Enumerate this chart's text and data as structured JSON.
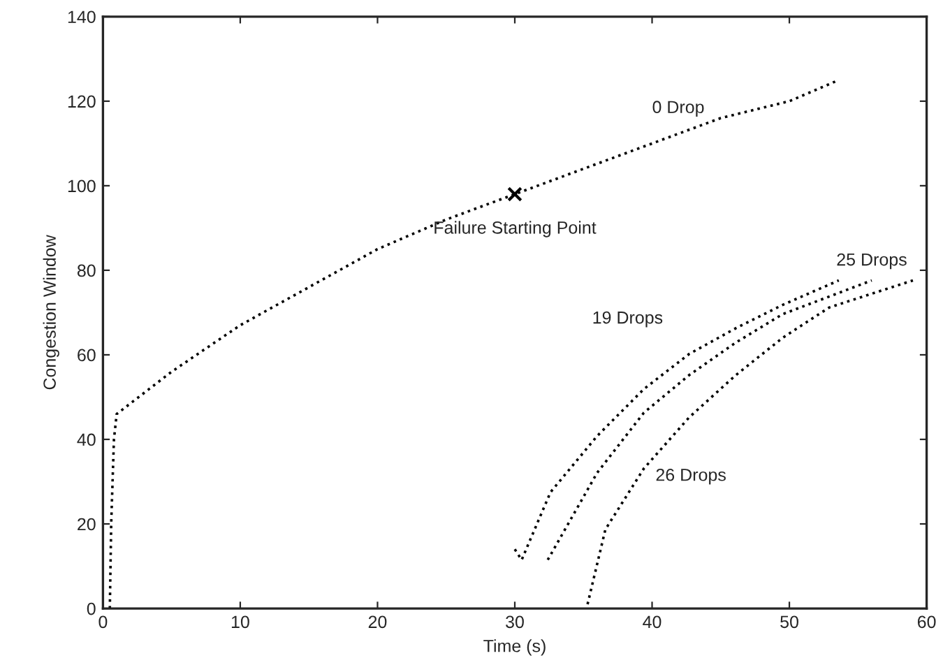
{
  "chart_data": {
    "type": "line",
    "xlabel": "Time (s)",
    "ylabel": "Congestion Window",
    "xlim": [
      0,
      60
    ],
    "ylim": [
      0,
      140
    ],
    "xticks": [
      0,
      10,
      20,
      30,
      40,
      50,
      60
    ],
    "yticks": [
      0,
      20,
      40,
      60,
      80,
      100,
      120,
      140
    ],
    "grid": false,
    "legend": false,
    "line_style": "dotted",
    "marker": "none",
    "series": [
      {
        "name": "0 Drop",
        "color": "#000000",
        "x": [
          0.5,
          0.6,
          0.8,
          1,
          5,
          10,
          15,
          20,
          25,
          30,
          35,
          40,
          45,
          50,
          53.6
        ],
        "values": [
          0,
          20,
          40,
          46,
          56,
          67,
          76,
          85,
          92,
          98,
          104,
          110,
          116,
          120,
          125
        ]
      },
      {
        "name": "19 Drops",
        "color": "#000000",
        "x": [
          30.0,
          30.5,
          32.6,
          36.0,
          39.4,
          42.7,
          46.1,
          49.5,
          53.6
        ],
        "values": [
          14,
          11.5,
          27.5,
          40.8,
          51.9,
          60.2,
          66.3,
          71.8,
          77.6
        ]
      },
      {
        "name": "25 Drops",
        "color": "#000000",
        "x": [
          32.4,
          36.0,
          39.4,
          42.7,
          46.1,
          49.5,
          56.0
        ],
        "values": [
          11.5,
          32.1,
          46.3,
          55.2,
          62.9,
          69.6,
          77.6
        ]
      },
      {
        "name": "26 Drops",
        "color": "#000000",
        "x": [
          35.3,
          36.6,
          39.4,
          42.7,
          46.1,
          49.5,
          52.9,
          59.0
        ],
        "values": [
          1,
          18.7,
          33.1,
          45.2,
          55.2,
          64.0,
          71.2,
          77.6
        ]
      },
      {
        "type": "scatter",
        "color": "#000000",
        "marker": "cross",
        "x": [
          30
        ],
        "values": [
          98
        ]
      }
    ],
    "annotations": [
      {
        "text": "Failure Starting Point",
        "x": 30,
        "y": 98
      }
    ]
  }
}
